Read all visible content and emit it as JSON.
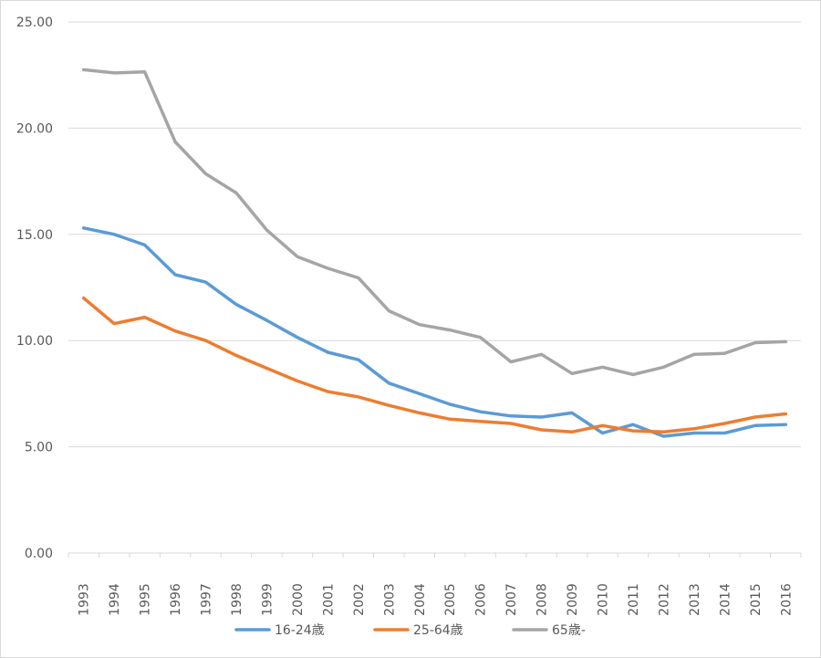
{
  "chart_data": {
    "type": "line",
    "title": "",
    "xlabel": "",
    "ylabel": "",
    "ylim": [
      0,
      25
    ],
    "yticks": [
      "0.00",
      "5.00",
      "10.00",
      "15.00",
      "20.00",
      "25.00"
    ],
    "grid": true,
    "legend_position": "bottom",
    "categories": [
      "1993",
      "1994",
      "1995",
      "1996",
      "1997",
      "1998",
      "1999",
      "2000",
      "2001",
      "2002",
      "2003",
      "2004",
      "2005",
      "2006",
      "2007",
      "2008",
      "2009",
      "2010",
      "2011",
      "2012",
      "2013",
      "2014",
      "2015",
      "2016"
    ],
    "series": [
      {
        "name": "16-24歳",
        "color": "#5b9bd5",
        "values": [
          15.3,
          15.0,
          14.5,
          13.1,
          12.75,
          11.7,
          10.95,
          10.15,
          9.45,
          9.1,
          8.0,
          7.5,
          7.0,
          6.65,
          6.45,
          6.4,
          6.6,
          5.65,
          6.05,
          5.5,
          5.65,
          5.65,
          6.0,
          6.05
        ]
      },
      {
        "name": "25-64歳",
        "color": "#ed7d31",
        "values": [
          12.0,
          10.8,
          11.1,
          10.45,
          10.0,
          9.3,
          8.7,
          8.1,
          7.6,
          7.35,
          6.95,
          6.6,
          6.3,
          6.2,
          6.1,
          5.8,
          5.7,
          6.0,
          5.75,
          5.7,
          5.85,
          6.1,
          6.4,
          6.55
        ]
      },
      {
        "name": "65歳-",
        "color": "#a5a5a5",
        "values": [
          22.75,
          22.6,
          22.65,
          19.35,
          17.85,
          16.95,
          15.2,
          13.95,
          13.4,
          12.95,
          11.4,
          10.75,
          10.5,
          10.15,
          9.0,
          9.35,
          8.45,
          8.75,
          8.4,
          8.75,
          9.35,
          9.4,
          9.9,
          9.95
        ]
      }
    ]
  }
}
